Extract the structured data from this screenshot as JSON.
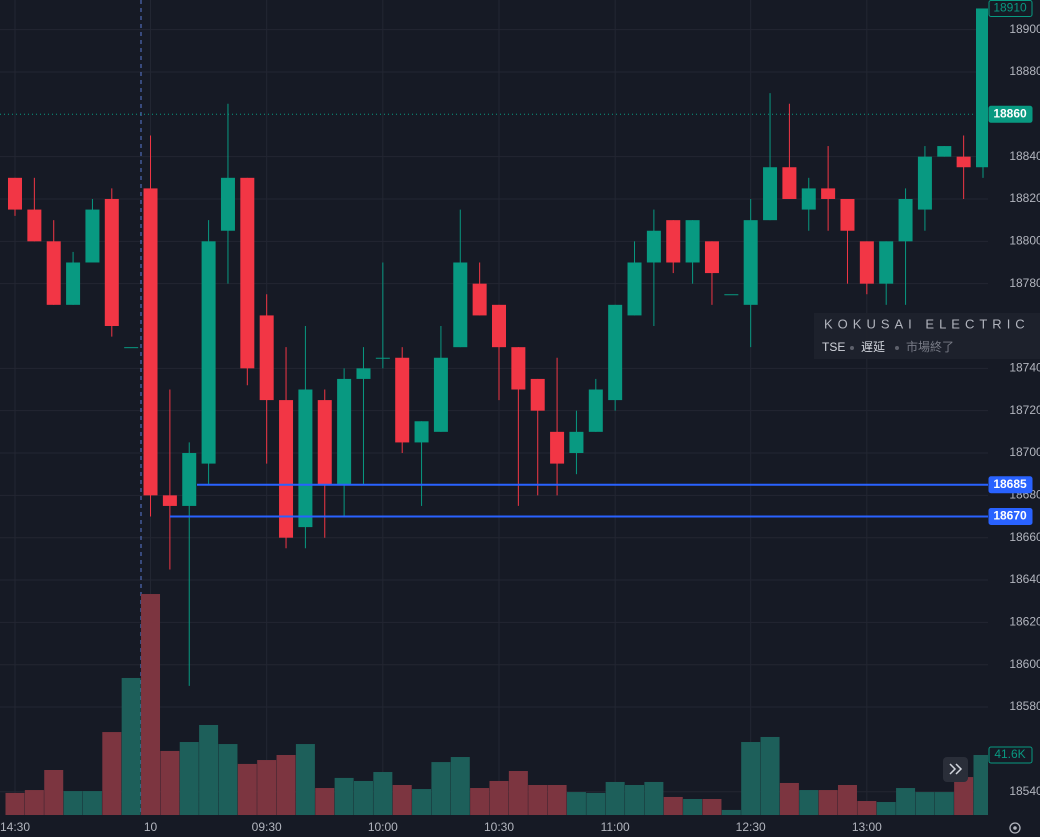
{
  "chart_data": {
    "type": "candlestick",
    "up_color": "#089981",
    "down_color": "#f23645",
    "volume_up_color": "#1d5f5a",
    "volume_down_color": "#7c3540",
    "categories": [
      "14:30",
      null,
      null,
      null,
      null,
      null,
      null,
      "10",
      null,
      null,
      null,
      null,
      null,
      "09:30",
      null,
      null,
      null,
      null,
      null,
      "10:00",
      null,
      null,
      null,
      null,
      null,
      "10:30",
      null,
      null,
      null,
      null,
      null,
      "11:00",
      null,
      null,
      null,
      null,
      null,
      null,
      "12:30",
      null,
      null,
      null,
      null,
      null,
      "13:00",
      null,
      null,
      null,
      null,
      null,
      null
    ],
    "open": [
      18830,
      18815,
      18800,
      18770,
      18790,
      18820,
      18750,
      18825,
      18680,
      18675,
      18695,
      18805,
      18830,
      18765,
      18725,
      18665,
      18725,
      18685,
      18735,
      18745,
      18745,
      18705,
      18710,
      18750,
      18780,
      18770,
      18750,
      18735,
      18710,
      18700,
      18710,
      18725,
      18765,
      18790,
      18810,
      18790,
      18800,
      18775,
      18770,
      18810,
      18835,
      18815,
      18825,
      18820,
      18800,
      18780,
      18800,
      18815,
      18840,
      18840,
      18835
    ],
    "high": [
      18830,
      18830,
      18810,
      18795,
      18820,
      18825,
      18750,
      18850,
      18730,
      18705,
      18810,
      18865,
      18830,
      18775,
      18750,
      18760,
      18730,
      18740,
      18750,
      18790,
      18750,
      18715,
      18760,
      18815,
      18790,
      18770,
      18750,
      18735,
      18745,
      18720,
      18735,
      18770,
      18800,
      18815,
      18810,
      18810,
      18800,
      18775,
      18820,
      18870,
      18865,
      18830,
      18845,
      18820,
      18800,
      18800,
      18825,
      18845,
      18845,
      18850,
      18910
    ],
    "low": [
      18812,
      18800,
      18770,
      18770,
      18790,
      18755,
      18750,
      18670,
      18645,
      18590,
      18685,
      18780,
      18732,
      18695,
      18655,
      18655,
      18660,
      18670,
      18685,
      18740,
      18700,
      18675,
      18710,
      18750,
      18765,
      18725,
      18675,
      18680,
      18680,
      18690,
      18710,
      18720,
      18765,
      18760,
      18785,
      18780,
      18770,
      18775,
      18750,
      18810,
      18820,
      18805,
      18805,
      18780,
      18775,
      18770,
      18770,
      18805,
      18840,
      18820,
      18830
    ],
    "close": [
      18815,
      18800,
      18770,
      18790,
      18815,
      18760,
      18750,
      18680,
      18675,
      18700,
      18800,
      18830,
      18740,
      18725,
      18660,
      18730,
      18685,
      18735,
      18740,
      18745,
      18705,
      18715,
      18745,
      18790,
      18765,
      18750,
      18730,
      18720,
      18695,
      18710,
      18730,
      18770,
      18790,
      18805,
      18790,
      18810,
      18785,
      18775,
      18810,
      18835,
      18820,
      18825,
      18820,
      18805,
      18780,
      18800,
      18820,
      18840,
      18845,
      18835,
      18910
    ],
    "volume": [
      15.3,
      17.3,
      31.2,
      16.6,
      16.6,
      57.5,
      95.0,
      153.2,
      44.4,
      50.6,
      62.4,
      49.2,
      35.4,
      38.1,
      41.6,
      49.2,
      18.7,
      25.7,
      23.6,
      29.8,
      20.8,
      18.0,
      36.7,
      40.2,
      18.7,
      23.6,
      30.5,
      20.8,
      20.8,
      15.9,
      15.3,
      22.9,
      20.8,
      22.9,
      12.5,
      11.1,
      11.1,
      3.5,
      50.6,
      54.1,
      22.2,
      17.3,
      17.3,
      20.8,
      9.7,
      9.0,
      18.7,
      15.9,
      15.9,
      26.3,
      41.6
    ],
    "volume_last_label": "41.6K",
    "ylim": [
      18529,
      18914
    ],
    "y2lim": [
      0,
      565
    ],
    "yticks": [
      18540,
      18580,
      18600,
      18620,
      18640,
      18660,
      18680,
      18700,
      18720,
      18740,
      18780,
      18800,
      18820,
      18840,
      18880,
      18900
    ],
    "grid": true,
    "price_marks": [
      {
        "value": 18910,
        "style": "outline",
        "color": "#089981"
      },
      {
        "value": 18860,
        "style": "filled",
        "color": "#089981"
      },
      {
        "value": 18685,
        "style": "filled",
        "color": "#2962ff"
      },
      {
        "value": 18670,
        "style": "filled",
        "color": "#2962ff"
      }
    ],
    "symbol": {
      "name": "KOKUSAI ELECTRIC",
      "exchange": "TSE",
      "delay": "遅延",
      "status": "市場終了"
    }
  }
}
